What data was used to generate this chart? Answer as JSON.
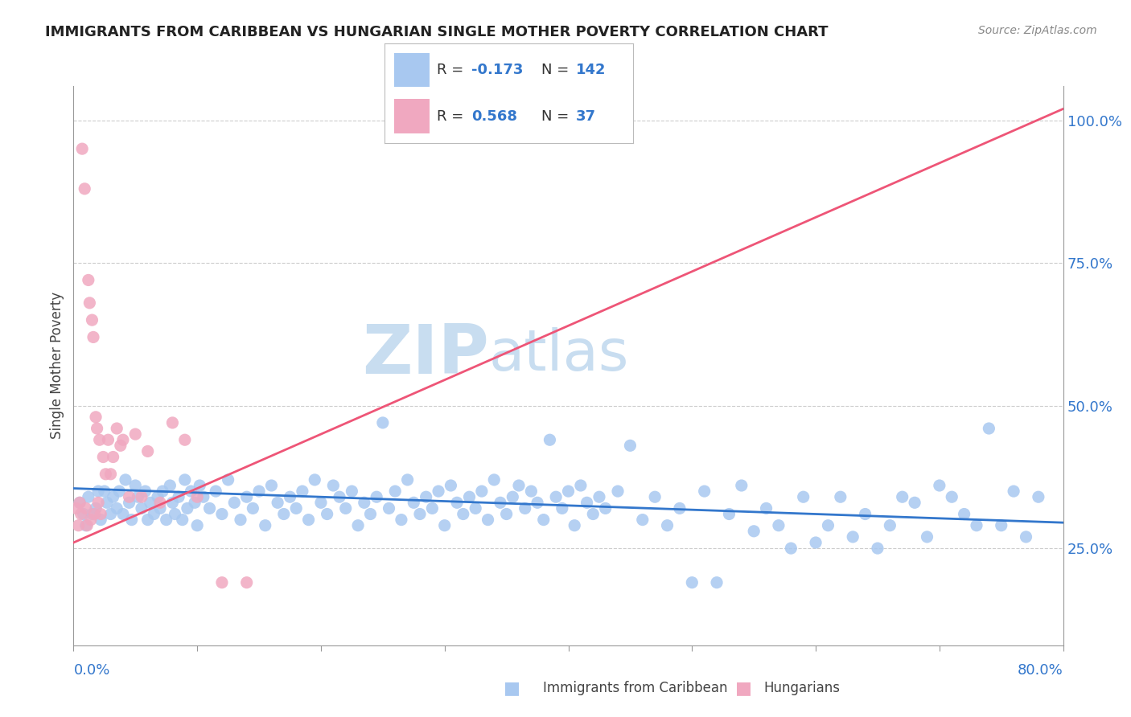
{
  "title": "IMMIGRANTS FROM CARIBBEAN VS HUNGARIAN SINGLE MOTHER POVERTY CORRELATION CHART",
  "source": "Source: ZipAtlas.com",
  "ylabel": "Single Mother Poverty",
  "r_blue": "-0.173",
  "n_blue": "142",
  "r_pink": "0.568",
  "n_pink": "37",
  "blue_color": "#a8c8f0",
  "pink_color": "#f0a8c0",
  "blue_line_color": "#3377cc",
  "pink_line_color": "#ee5577",
  "watermark_zip": "ZIP",
  "watermark_atlas": "atlas",
  "watermark_color": "#c8ddf0",
  "blue_scatter": [
    [
      0.5,
      33.0
    ],
    [
      0.8,
      31.0
    ],
    [
      1.0,
      29.0
    ],
    [
      1.2,
      34.0
    ],
    [
      1.5,
      31.0
    ],
    [
      1.8,
      32.0
    ],
    [
      2.0,
      35.0
    ],
    [
      2.2,
      30.0
    ],
    [
      2.5,
      35.0
    ],
    [
      2.7,
      33.0
    ],
    [
      3.0,
      31.0
    ],
    [
      3.2,
      34.0
    ],
    [
      3.5,
      32.0
    ],
    [
      3.7,
      35.0
    ],
    [
      4.0,
      31.0
    ],
    [
      4.2,
      37.0
    ],
    [
      4.5,
      33.0
    ],
    [
      4.7,
      30.0
    ],
    [
      5.0,
      36.0
    ],
    [
      5.2,
      34.0
    ],
    [
      5.5,
      32.0
    ],
    [
      5.8,
      35.0
    ],
    [
      6.0,
      30.0
    ],
    [
      6.2,
      33.0
    ],
    [
      6.5,
      31.0
    ],
    [
      6.8,
      34.0
    ],
    [
      7.0,
      32.0
    ],
    [
      7.2,
      35.0
    ],
    [
      7.5,
      30.0
    ],
    [
      7.8,
      36.0
    ],
    [
      8.0,
      33.0
    ],
    [
      8.2,
      31.0
    ],
    [
      8.5,
      34.0
    ],
    [
      8.8,
      30.0
    ],
    [
      9.0,
      37.0
    ],
    [
      9.2,
      32.0
    ],
    [
      9.5,
      35.0
    ],
    [
      9.8,
      33.0
    ],
    [
      10.0,
      29.0
    ],
    [
      10.2,
      36.0
    ],
    [
      10.5,
      34.0
    ],
    [
      11.0,
      32.0
    ],
    [
      11.5,
      35.0
    ],
    [
      12.0,
      31.0
    ],
    [
      12.5,
      37.0
    ],
    [
      13.0,
      33.0
    ],
    [
      13.5,
      30.0
    ],
    [
      14.0,
      34.0
    ],
    [
      14.5,
      32.0
    ],
    [
      15.0,
      35.0
    ],
    [
      15.5,
      29.0
    ],
    [
      16.0,
      36.0
    ],
    [
      16.5,
      33.0
    ],
    [
      17.0,
      31.0
    ],
    [
      17.5,
      34.0
    ],
    [
      18.0,
      32.0
    ],
    [
      18.5,
      35.0
    ],
    [
      19.0,
      30.0
    ],
    [
      19.5,
      37.0
    ],
    [
      20.0,
      33.0
    ],
    [
      20.5,
      31.0
    ],
    [
      21.0,
      36.0
    ],
    [
      21.5,
      34.0
    ],
    [
      22.0,
      32.0
    ],
    [
      22.5,
      35.0
    ],
    [
      23.0,
      29.0
    ],
    [
      23.5,
      33.0
    ],
    [
      24.0,
      31.0
    ],
    [
      24.5,
      34.0
    ],
    [
      25.0,
      47.0
    ],
    [
      25.5,
      32.0
    ],
    [
      26.0,
      35.0
    ],
    [
      26.5,
      30.0
    ],
    [
      27.0,
      37.0
    ],
    [
      27.5,
      33.0
    ],
    [
      28.0,
      31.0
    ],
    [
      28.5,
      34.0
    ],
    [
      29.0,
      32.0
    ],
    [
      29.5,
      35.0
    ],
    [
      30.0,
      29.0
    ],
    [
      30.5,
      36.0
    ],
    [
      31.0,
      33.0
    ],
    [
      31.5,
      31.0
    ],
    [
      32.0,
      34.0
    ],
    [
      32.5,
      32.0
    ],
    [
      33.0,
      35.0
    ],
    [
      33.5,
      30.0
    ],
    [
      34.0,
      37.0
    ],
    [
      34.5,
      33.0
    ],
    [
      35.0,
      31.0
    ],
    [
      35.5,
      34.0
    ],
    [
      36.0,
      36.0
    ],
    [
      36.5,
      32.0
    ],
    [
      37.0,
      35.0
    ],
    [
      37.5,
      33.0
    ],
    [
      38.0,
      30.0
    ],
    [
      38.5,
      44.0
    ],
    [
      39.0,
      34.0
    ],
    [
      39.5,
      32.0
    ],
    [
      40.0,
      35.0
    ],
    [
      40.5,
      29.0
    ],
    [
      41.0,
      36.0
    ],
    [
      41.5,
      33.0
    ],
    [
      42.0,
      31.0
    ],
    [
      42.5,
      34.0
    ],
    [
      43.0,
      32.0
    ],
    [
      44.0,
      35.0
    ],
    [
      45.0,
      43.0
    ],
    [
      46.0,
      30.0
    ],
    [
      47.0,
      34.0
    ],
    [
      48.0,
      29.0
    ],
    [
      49.0,
      32.0
    ],
    [
      50.0,
      19.0
    ],
    [
      51.0,
      35.0
    ],
    [
      52.0,
      19.0
    ],
    [
      53.0,
      31.0
    ],
    [
      54.0,
      36.0
    ],
    [
      55.0,
      28.0
    ],
    [
      56.0,
      32.0
    ],
    [
      57.0,
      29.0
    ],
    [
      58.0,
      25.0
    ],
    [
      59.0,
      34.0
    ],
    [
      60.0,
      26.0
    ],
    [
      61.0,
      29.0
    ],
    [
      62.0,
      34.0
    ],
    [
      63.0,
      27.0
    ],
    [
      64.0,
      31.0
    ],
    [
      65.0,
      25.0
    ],
    [
      66.0,
      29.0
    ],
    [
      67.0,
      34.0
    ],
    [
      68.0,
      33.0
    ],
    [
      69.0,
      27.0
    ],
    [
      70.0,
      36.0
    ],
    [
      71.0,
      34.0
    ],
    [
      72.0,
      31.0
    ],
    [
      73.0,
      29.0
    ],
    [
      74.0,
      46.0
    ],
    [
      75.0,
      29.0
    ],
    [
      76.0,
      35.0
    ],
    [
      77.0,
      27.0
    ],
    [
      78.0,
      34.0
    ]
  ],
  "pink_scatter": [
    [
      0.2,
      32.0
    ],
    [
      0.4,
      29.0
    ],
    [
      0.5,
      33.0
    ],
    [
      0.6,
      31.0
    ],
    [
      0.7,
      95.0
    ],
    [
      0.9,
      88.0
    ],
    [
      1.0,
      32.0
    ],
    [
      1.1,
      29.0
    ],
    [
      1.2,
      72.0
    ],
    [
      1.3,
      68.0
    ],
    [
      1.4,
      30.0
    ],
    [
      1.5,
      65.0
    ],
    [
      1.6,
      62.0
    ],
    [
      1.7,
      31.0
    ],
    [
      1.8,
      48.0
    ],
    [
      1.9,
      46.0
    ],
    [
      2.0,
      33.0
    ],
    [
      2.1,
      44.0
    ],
    [
      2.2,
      31.0
    ],
    [
      2.4,
      41.0
    ],
    [
      2.6,
      38.0
    ],
    [
      2.8,
      44.0
    ],
    [
      3.0,
      38.0
    ],
    [
      3.2,
      41.0
    ],
    [
      3.5,
      46.0
    ],
    [
      3.8,
      43.0
    ],
    [
      4.0,
      44.0
    ],
    [
      4.5,
      34.0
    ],
    [
      5.0,
      45.0
    ],
    [
      5.5,
      34.0
    ],
    [
      6.0,
      42.0
    ],
    [
      7.0,
      33.0
    ],
    [
      8.0,
      47.0
    ],
    [
      9.0,
      44.0
    ],
    [
      10.0,
      34.0
    ],
    [
      12.0,
      19.0
    ],
    [
      14.0,
      19.0
    ]
  ],
  "xmin": 0.0,
  "xmax": 80.0,
  "ymin": 8.0,
  "ymax": 106.0,
  "blue_trend_x": [
    0.0,
    80.0
  ],
  "blue_trend_y": [
    35.5,
    29.5
  ],
  "pink_trend_x": [
    0.0,
    80.0
  ],
  "pink_trend_y": [
    26.0,
    102.0
  ]
}
